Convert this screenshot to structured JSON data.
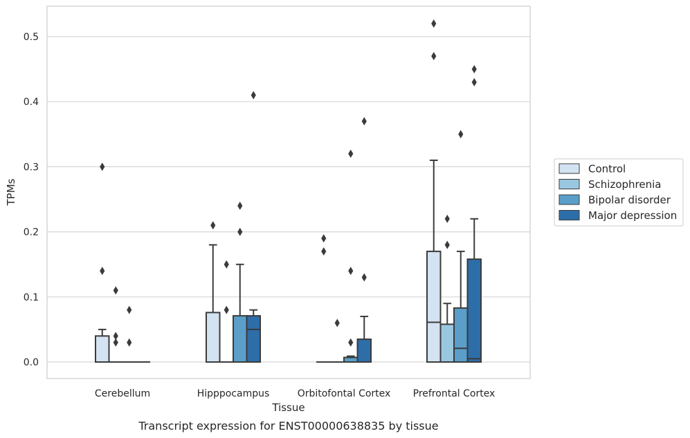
{
  "chart_data": {
    "type": "box",
    "title": "",
    "caption": "Transcript expression for ENST00000638835 by tissue",
    "xlabel": "Tissue",
    "ylabel": "TPMs",
    "ylim": [
      -0.025,
      0.548
    ],
    "yticks": [
      0.0,
      0.1,
      0.2,
      0.3,
      0.4,
      0.5
    ],
    "ytick_labels": [
      "0.0",
      "0.1",
      "0.2",
      "0.3",
      "0.4",
      "0.5"
    ],
    "categories": [
      "Cerebellum",
      "Hipppocampus",
      "Orbitofontal Cortex",
      "Prefrontal Cortex"
    ],
    "grid": "horizontal",
    "legend_position": "right",
    "series": [
      {
        "name": "Control",
        "color": "#d3e3f2",
        "boxes": [
          {
            "q1": 0,
            "median": 0,
            "q3": 0.04,
            "whisker_low": 0,
            "whisker_high": 0.05,
            "outliers": [
              0.14,
              0.3
            ]
          },
          {
            "q1": 0,
            "median": 0,
            "q3": 0.076,
            "whisker_low": 0,
            "whisker_high": 0.18,
            "outliers": [
              0.21
            ]
          },
          {
            "q1": 0,
            "median": 0,
            "q3": 0,
            "whisker_low": 0,
            "whisker_high": 0,
            "outliers": [
              0.17,
              0.19
            ]
          },
          {
            "q1": 0,
            "median": 0.061,
            "q3": 0.17,
            "whisker_low": 0,
            "whisker_high": 0.31,
            "outliers": [
              0.47,
              0.52
            ]
          }
        ]
      },
      {
        "name": "Schizophrenia",
        "color": "#9ac7e0",
        "boxes": [
          {
            "q1": 0,
            "median": 0,
            "q3": 0,
            "whisker_low": 0,
            "whisker_high": 0,
            "outliers": [
              0.11,
              0.03,
              0.04
            ]
          },
          {
            "q1": 0,
            "median": 0,
            "q3": 0,
            "whisker_low": 0,
            "whisker_high": 0,
            "outliers": [
              0.08,
              0.15
            ]
          },
          {
            "q1": 0,
            "median": 0,
            "q3": 0,
            "whisker_low": 0,
            "whisker_high": 0,
            "outliers": [
              0.06
            ]
          },
          {
            "q1": 0,
            "median": 0,
            "q3": 0.058,
            "whisker_low": 0,
            "whisker_high": 0.09,
            "outliers": [
              0.18,
              0.22
            ]
          }
        ]
      },
      {
        "name": "Bipolar disorder",
        "color": "#5b9ec9",
        "boxes": [
          {
            "q1": 0,
            "median": 0,
            "q3": 0,
            "whisker_low": 0,
            "whisker_high": 0,
            "outliers": [
              0.08,
              0.03
            ]
          },
          {
            "q1": 0,
            "median": 0,
            "q3": 0.071,
            "whisker_low": 0,
            "whisker_high": 0.15,
            "outliers": [
              0.2,
              0.24
            ]
          },
          {
            "q1": 0,
            "median": 0,
            "q3": 0.007,
            "whisker_low": 0,
            "whisker_high": 0.009,
            "outliers": [
              0.03,
              0.14,
              0.32
            ]
          },
          {
            "q1": 0,
            "median": 0.021,
            "q3": 0.083,
            "whisker_low": 0,
            "whisker_high": 0.17,
            "outliers": [
              0.35
            ]
          }
        ]
      },
      {
        "name": "Major depression",
        "color": "#2d6ea9",
        "boxes": [
          {
            "q1": 0,
            "median": 0,
            "q3": 0,
            "whisker_low": 0,
            "whisker_high": 0,
            "outliers": []
          },
          {
            "q1": 0,
            "median": 0.05,
            "q3": 0.071,
            "whisker_low": 0,
            "whisker_high": 0.08,
            "outliers": [
              0.41
            ]
          },
          {
            "q1": 0,
            "median": 0,
            "q3": 0.035,
            "whisker_low": 0,
            "whisker_high": 0.07,
            "outliers": [
              0.13,
              0.37
            ]
          },
          {
            "q1": 0,
            "median": 0.005,
            "q3": 0.158,
            "whisker_low": 0,
            "whisker_high": 0.22,
            "outliers": [
              0.43,
              0.45
            ]
          }
        ]
      }
    ]
  }
}
